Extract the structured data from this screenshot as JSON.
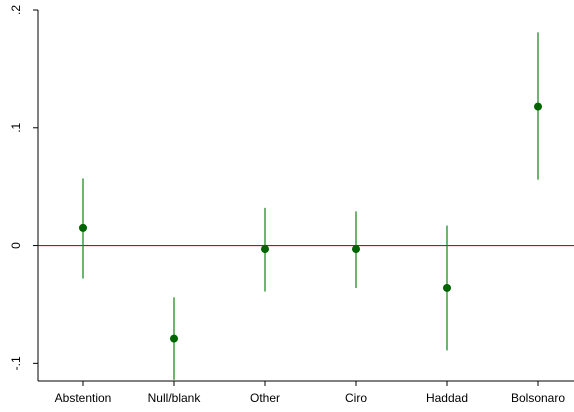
{
  "chart_data": {
    "type": "scatter",
    "subtype": "coefficient-plot-with-confidence-intervals",
    "title": "",
    "xlabel": "",
    "ylabel": "",
    "categories": [
      "Abstention",
      "Null/blank",
      "Other",
      "Ciro",
      "Haddad",
      "Bolsonaro"
    ],
    "points": [
      {
        "category": "Abstention",
        "estimate": 0.015,
        "ci_low": -0.028,
        "ci_high": 0.057
      },
      {
        "category": "Null/blank",
        "estimate": -0.079,
        "ci_low": -0.114,
        "ci_high": -0.044
      },
      {
        "category": "Other",
        "estimate": -0.003,
        "ci_low": -0.039,
        "ci_high": 0.032
      },
      {
        "category": "Ciro",
        "estimate": -0.003,
        "ci_low": -0.036,
        "ci_high": 0.029
      },
      {
        "category": "Haddad",
        "estimate": -0.036,
        "ci_low": -0.089,
        "ci_high": 0.017
      },
      {
        "category": "Bolsonaro",
        "estimate": 0.118,
        "ci_low": 0.056,
        "ci_high": 0.181
      }
    ],
    "ylim": [
      -0.115,
      0.2
    ],
    "yticks": [
      -0.1,
      0,
      0.1,
      0.2
    ],
    "ytick_labels": [
      "-.1",
      "0",
      ".1",
      ".2"
    ],
    "reference_line": 0,
    "grid": false,
    "legend": "none",
    "colors": {
      "marker": "#006400",
      "ci": "#228b22",
      "reference_line": "#cc0033",
      "axis": "#000000"
    }
  }
}
